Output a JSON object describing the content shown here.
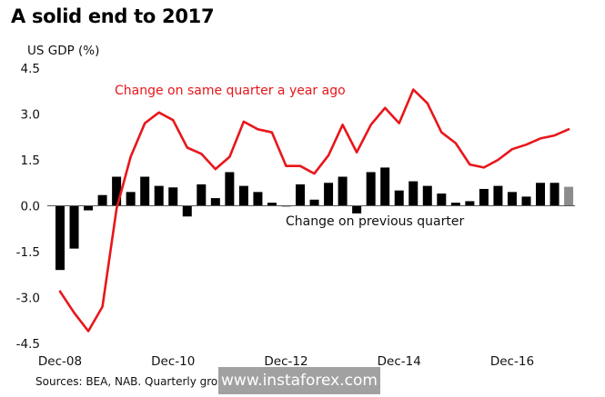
{
  "chart_data": {
    "type": "bar+line",
    "title": "A solid end to 2017",
    "ylabel": "US GDP (%)",
    "ylim": [
      -4.5,
      4.5
    ],
    "yticks": [
      "4.5",
      "3.0",
      "1.5",
      "0.0",
      "-1.5",
      "-3.0",
      "-4.5"
    ],
    "ytick_values": [
      4.5,
      3.0,
      1.5,
      0.0,
      -1.5,
      -3.0,
      -4.5
    ],
    "xticks": [
      "Dec-08",
      "Dec-10",
      "Dec-12",
      "Dec-14",
      "Dec-16"
    ],
    "xtick_index": [
      0,
      8,
      16,
      24,
      32
    ],
    "categories": [
      "Dec-08",
      "Mar-09",
      "Jun-09",
      "Sep-09",
      "Dec-09",
      "Mar-10",
      "Jun-10",
      "Sep-10",
      "Dec-10",
      "Mar-11",
      "Jun-11",
      "Sep-11",
      "Dec-11",
      "Mar-12",
      "Jun-12",
      "Sep-12",
      "Dec-12",
      "Mar-13",
      "Jun-13",
      "Sep-13",
      "Dec-13",
      "Mar-14",
      "Jun-14",
      "Sep-14",
      "Dec-14",
      "Mar-15",
      "Jun-15",
      "Sep-15",
      "Dec-15",
      "Mar-16",
      "Jun-16",
      "Sep-16",
      "Dec-16",
      "Mar-17",
      "Jun-17",
      "Sep-17",
      "Dec-17"
    ],
    "series": [
      {
        "name": "Change on previous quarter",
        "kind": "bar",
        "color": "#000000",
        "last_color": "#8c8c8c",
        "values": [
          -2.1,
          -1.4,
          -0.15,
          0.35,
          0.95,
          0.45,
          0.95,
          0.65,
          0.6,
          -0.35,
          0.7,
          0.25,
          1.1,
          0.65,
          0.45,
          0.1,
          0.0,
          0.7,
          0.2,
          0.75,
          0.95,
          -0.25,
          1.1,
          1.25,
          0.5,
          0.8,
          0.65,
          0.4,
          0.1,
          0.15,
          0.55,
          0.65,
          0.45,
          0.3,
          0.75,
          0.75,
          0.62
        ]
      },
      {
        "name": "Change on same quarter a year ago",
        "kind": "line",
        "color": "#e8161a",
        "values": [
          -2.8,
          -3.5,
          -4.1,
          -3.3,
          -0.1,
          1.6,
          2.7,
          3.05,
          2.8,
          1.9,
          1.7,
          1.2,
          1.6,
          2.75,
          2.5,
          2.4,
          1.3,
          1.3,
          1.05,
          1.65,
          2.65,
          1.75,
          2.65,
          3.2,
          2.7,
          3.8,
          3.35,
          2.4,
          2.05,
          1.35,
          1.25,
          1.5,
          1.85,
          2.0,
          2.2,
          2.3,
          2.5
        ]
      }
    ],
    "annotations": {
      "line_label": "Change on same quarter a year ago",
      "bar_label": "Change on previous quarter"
    },
    "grid": false,
    "legend": "inline annotations"
  },
  "source_text": "Sources: BEA, NAB. Quarterly gro",
  "watermark": "www.instaforex.com"
}
